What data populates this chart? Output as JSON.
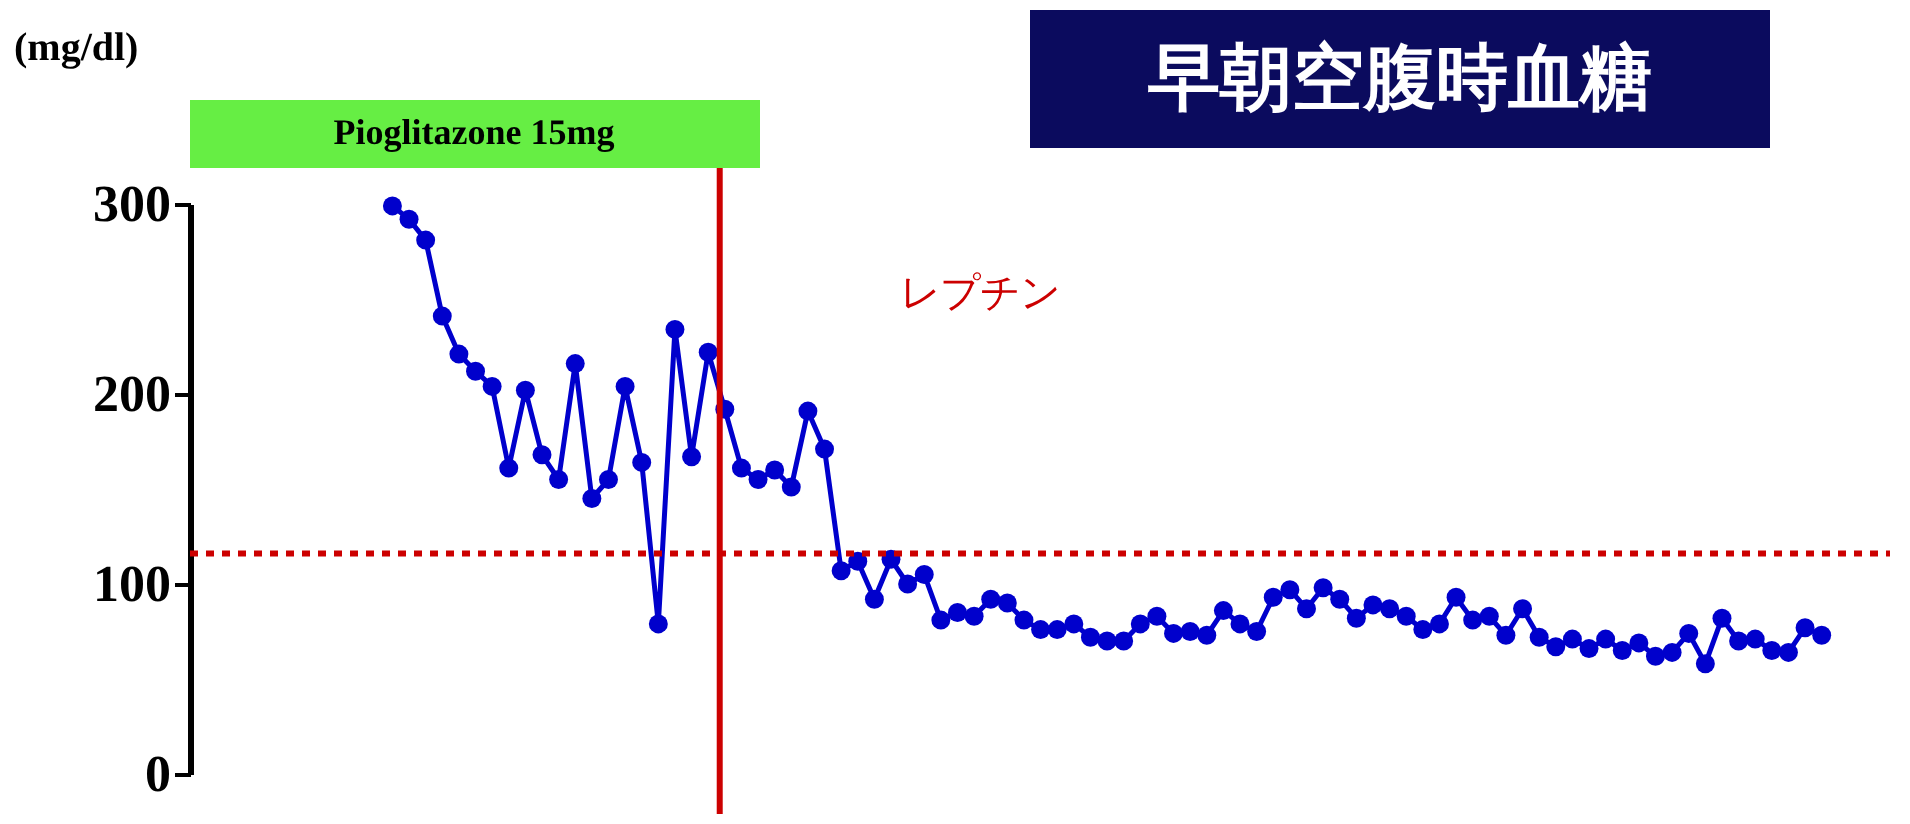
{
  "chart_data": {
    "type": "line",
    "title": "早朝空腹時血糖",
    "ylabel": "(mg/dl)",
    "categories": [
      null,
      null,
      null,
      null,
      null,
      null,
      null,
      null,
      null,
      null,
      null,
      null,
      null,
      null,
      null,
      null,
      null,
      null,
      null,
      null,
      null,
      null,
      null,
      null,
      null,
      null,
      null,
      null,
      null,
      null,
      null,
      null,
      null,
      null,
      null,
      null,
      null,
      null,
      null,
      null,
      null,
      null,
      null,
      null,
      null,
      null,
      null,
      null,
      null,
      null,
      null,
      null,
      null,
      null,
      null,
      null,
      null,
      null,
      null,
      null,
      null,
      null,
      null,
      null,
      null,
      null,
      null,
      null,
      null,
      null,
      null,
      null,
      null,
      null,
      null,
      null,
      null,
      null,
      null,
      null,
      null,
      null,
      null,
      null,
      null,
      null,
      null
    ],
    "series": [
      {
        "color": "#0000cc",
        "values": [
          299,
          292,
          281,
          241,
          221,
          212,
          204,
          161,
          202,
          168,
          155,
          216,
          145,
          155,
          204,
          164,
          79,
          234,
          167,
          222,
          192,
          161,
          155,
          160,
          151,
          191,
          171,
          107,
          112,
          92,
          113,
          100,
          105,
          81,
          85,
          83,
          92,
          90,
          81,
          76,
          76,
          79,
          72,
          70,
          70,
          79,
          83,
          74,
          75,
          73,
          86,
          79,
          75,
          93,
          97,
          87,
          98,
          92,
          82,
          89,
          87,
          83,
          76,
          79,
          93,
          81,
          83,
          73,
          87,
          72,
          67,
          71,
          66,
          71,
          65,
          69,
          62,
          64,
          74,
          58,
          82,
          70,
          71,
          65,
          64,
          77,
          73
        ]
      }
    ],
    "ylim": [
      0,
      300
    ],
    "yticks": [
      0,
      100,
      200,
      300
    ],
    "tick_labels": "y",
    "marker": "circle",
    "line_style": "solid",
    "grid": false,
    "ref_lines": [
      {
        "axis": "y",
        "value": 116,
        "color": "#cc0000",
        "line_style": "dotted"
      }
    ],
    "annotations": [
      "Pioglitazone 15mg",
      "レプチン"
    ]
  }
}
